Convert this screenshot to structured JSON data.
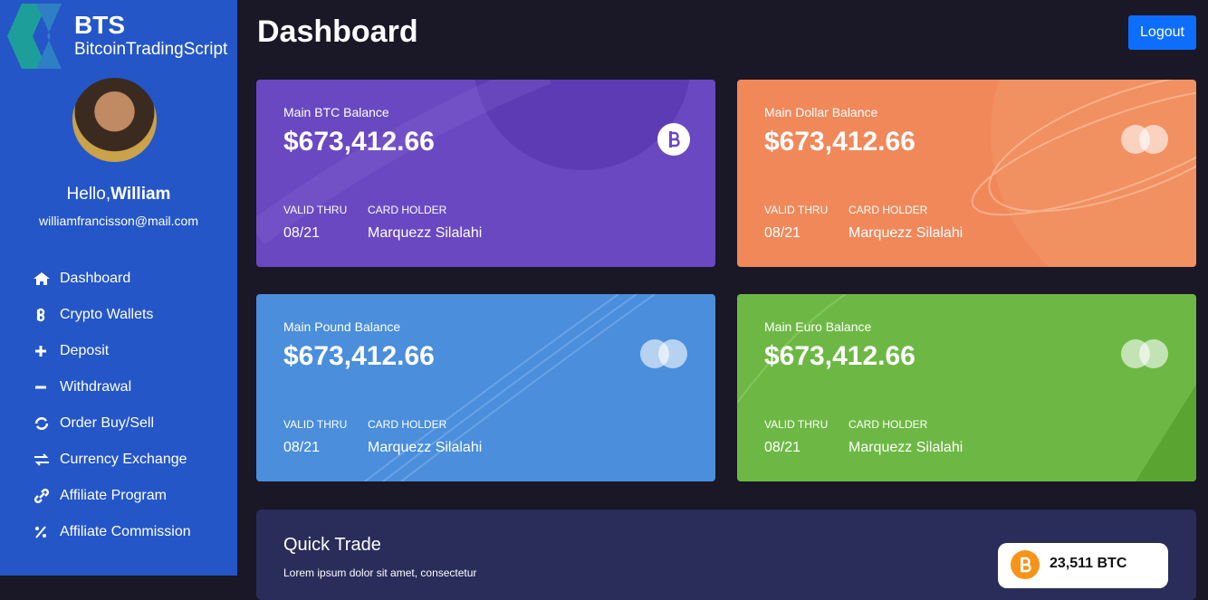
{
  "sidebar": {
    "logo": {
      "title": "BTS",
      "subtitle": "BitcoinTradingScript"
    },
    "profile": {
      "greeting": "Hello,",
      "name": "William",
      "email": "williamfrancisson@mail.com"
    },
    "menu": [
      "Dashboard",
      "Crypto Wallets",
      "Deposit",
      "Withdrawal",
      "Order Buy/Sell",
      "Currency Exchange",
      "Affiliate Program",
      "Affiliate Commission"
    ]
  },
  "header": {
    "title": "Dashboard",
    "logout": "Logout"
  },
  "cards": [
    {
      "label": "Main BTC Balance",
      "amount": "$673,412.66",
      "valid_label": "VALID THRU",
      "valid": "08/21",
      "holder_label": "CARD HOLDER",
      "holder": "Marquezz Silalahi"
    },
    {
      "label": "Main Dollar Balance",
      "amount": "$673,412.66",
      "valid_label": "VALID THRU",
      "valid": "08/21",
      "holder_label": "CARD HOLDER",
      "holder": "Marquezz Silalahi"
    },
    {
      "label": "Main Pound Balance",
      "amount": "$673,412.66",
      "valid_label": "VALID THRU",
      "valid": "08/21",
      "holder_label": "CARD HOLDER",
      "holder": "Marquezz Silalahi"
    },
    {
      "label": "Main Euro Balance",
      "amount": "$673,412.66",
      "valid_label": "VALID THRU",
      "valid": "08/21",
      "holder_label": "CARD HOLDER",
      "holder": "Marquezz Silalahi"
    }
  ],
  "quick_trade": {
    "title": "Quick Trade",
    "text": "Lorem ipsum dolor sit amet, consectetur",
    "badge": "23,511 BTC"
  }
}
